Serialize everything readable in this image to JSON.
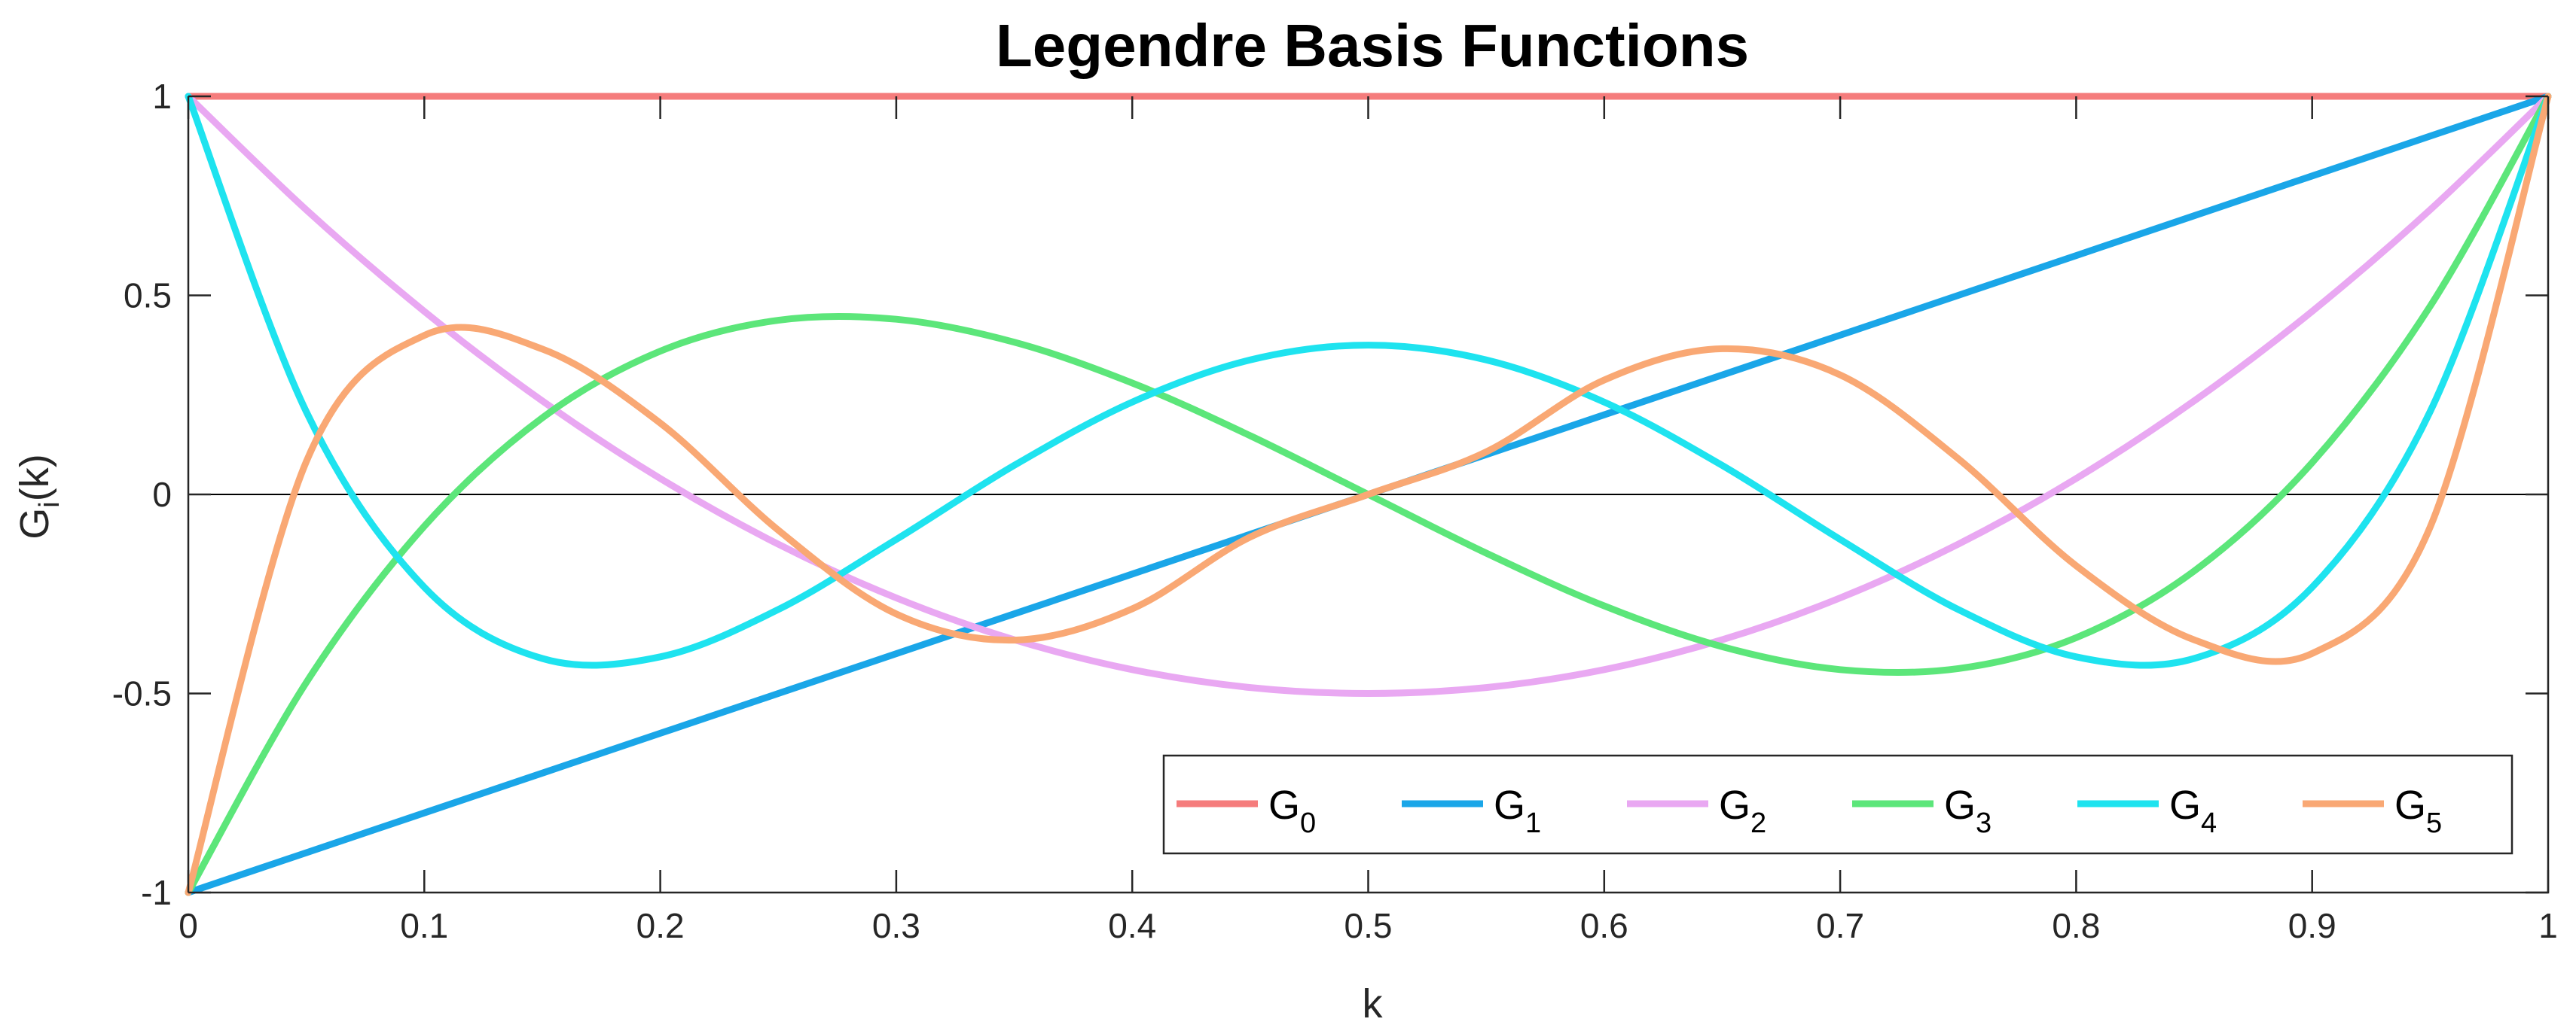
{
  "chart_data": {
    "type": "line",
    "title": "Legendre Basis Functions",
    "xlabel": "k",
    "ylabel": {
      "base": "G",
      "sub": "i",
      "rest": "(k)"
    },
    "xlim": [
      0,
      1
    ],
    "ylim": [
      -1,
      1
    ],
    "xticks": [
      0,
      0.1,
      0.2,
      0.3,
      0.4,
      0.5,
      0.6,
      0.7,
      0.8,
      0.9,
      1
    ],
    "xtick_labels": [
      "0",
      "0.1",
      "0.2",
      "0.3",
      "0.4",
      "0.5",
      "0.6",
      "0.7",
      "0.8",
      "0.9",
      "1"
    ],
    "yticks": [
      -1,
      -0.5,
      0,
      0.5,
      1
    ],
    "ytick_labels": [
      "-1",
      "-0.5",
      "0",
      "0.5",
      "1"
    ],
    "grid": false,
    "zero_line": true,
    "legend_position": "bottom-right",
    "x": [
      0,
      0.05,
      0.1,
      0.15,
      0.2,
      0.25,
      0.3,
      0.35,
      0.4,
      0.45,
      0.5,
      0.55,
      0.6,
      0.65,
      0.7,
      0.75,
      0.8,
      0.85,
      0.9,
      0.95,
      1
    ],
    "series": [
      {
        "name": "G",
        "sub": "0",
        "color": "#f57c7c",
        "values": [
          1,
          1,
          1,
          1,
          1,
          1,
          1,
          1,
          1,
          1,
          1,
          1,
          1,
          1,
          1,
          1,
          1,
          1,
          1,
          1,
          1
        ]
      },
      {
        "name": "G",
        "sub": "1",
        "color": "#1aa6e8",
        "values": [
          -1,
          -0.9,
          -0.8,
          -0.7,
          -0.6,
          -0.5,
          -0.4,
          -0.3,
          -0.2,
          -0.1,
          0,
          0.1,
          0.2,
          0.3,
          0.4,
          0.5,
          0.6,
          0.7,
          0.8,
          0.9,
          1
        ]
      },
      {
        "name": "G",
        "sub": "2",
        "color": "#e9a8f2",
        "values": [
          1,
          0.715,
          0.46,
          0.235,
          0.04,
          -0.125,
          -0.26,
          -0.365,
          -0.44,
          -0.485,
          -0.5,
          -0.485,
          -0.44,
          -0.365,
          -0.26,
          -0.125,
          0.04,
          0.235,
          0.46,
          0.715,
          1
        ]
      },
      {
        "name": "G",
        "sub": "3",
        "color": "#5ce67a",
        "values": [
          -1,
          -0.4725,
          -0.08,
          0.1925,
          0.36,
          0.4375,
          0.44,
          0.3825,
          0.28,
          0.1475,
          0,
          -0.1475,
          -0.28,
          -0.3825,
          -0.44,
          -0.4375,
          -0.36,
          -0.1925,
          0.08,
          0.4725,
          1
        ]
      },
      {
        "name": "G",
        "sub": "4",
        "color": "#1ee3ef",
        "values": [
          1,
          0.2079,
          -0.233,
          -0.4121,
          -0.408,
          -0.2891,
          -0.113,
          0.0729,
          0.232,
          0.3379,
          0.375,
          0.3379,
          0.232,
          0.0729,
          -0.113,
          -0.2891,
          -0.408,
          -0.4121,
          -0.233,
          0.2079,
          1
        ]
      },
      {
        "name": "G",
        "sub": "5",
        "color": "#f9a874",
        "values": [
          -1,
          0.0822,
          0.3995,
          0.3652,
          0.1792,
          -0.0898,
          -0.3002,
          -0.3659,
          -0.2874,
          -0.1069,
          0,
          0.1069,
          0.2874,
          0.3659,
          0.3002,
          0.0898,
          -0.1792,
          -0.3652,
          -0.3995,
          -0.0822,
          1
        ]
      }
    ]
  }
}
